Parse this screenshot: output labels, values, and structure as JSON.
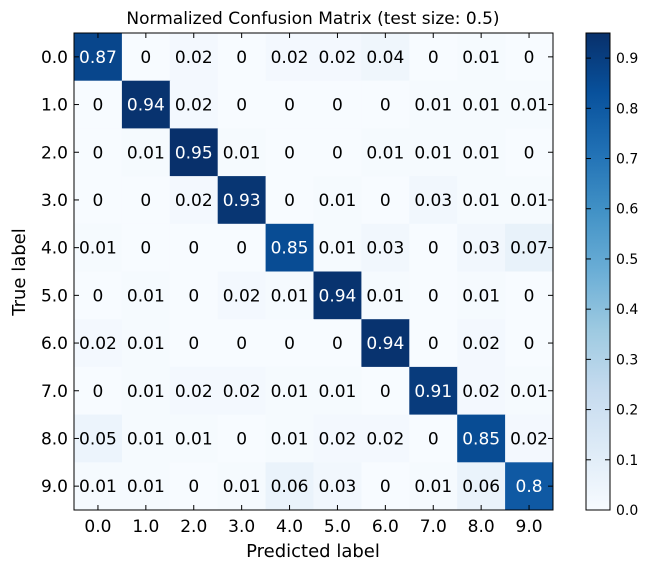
{
  "chart_data": {
    "type": "heatmap",
    "title": "Normalized Confusion Matrix (test size: 0.5)",
    "xlabel": "Predicted label",
    "ylabel": "True label",
    "x_categories": [
      "0.0",
      "1.0",
      "2.0",
      "3.0",
      "4.0",
      "5.0",
      "6.0",
      "7.0",
      "8.0",
      "9.0"
    ],
    "y_categories": [
      "0.0",
      "1.0",
      "2.0",
      "3.0",
      "4.0",
      "5.0",
      "6.0",
      "7.0",
      "8.0",
      "9.0"
    ],
    "values": [
      [
        0.87,
        0.0,
        0.02,
        0.0,
        0.02,
        0.02,
        0.04,
        0.0,
        0.01,
        0.0
      ],
      [
        0.0,
        0.94,
        0.02,
        0.0,
        0.0,
        0.0,
        0.0,
        0.01,
        0.01,
        0.01
      ],
      [
        0.0,
        0.01,
        0.95,
        0.01,
        0.0,
        0.0,
        0.01,
        0.01,
        0.01,
        0.0
      ],
      [
        0.0,
        0.0,
        0.02,
        0.93,
        0.0,
        0.01,
        0.0,
        0.03,
        0.01,
        0.01
      ],
      [
        0.01,
        0.0,
        0.0,
        0.0,
        0.85,
        0.01,
        0.03,
        0.0,
        0.03,
        0.07
      ],
      [
        0.0,
        0.01,
        0.0,
        0.02,
        0.01,
        0.94,
        0.01,
        0.0,
        0.01,
        0.0
      ],
      [
        0.02,
        0.01,
        0.0,
        0.0,
        0.0,
        0.0,
        0.94,
        0.0,
        0.02,
        0.0
      ],
      [
        0.0,
        0.01,
        0.02,
        0.02,
        0.01,
        0.01,
        0.0,
        0.91,
        0.02,
        0.01
      ],
      [
        0.05,
        0.01,
        0.01,
        0.0,
        0.01,
        0.02,
        0.02,
        0.0,
        0.85,
        0.02
      ],
      [
        0.01,
        0.01,
        0.0,
        0.01,
        0.06,
        0.03,
        0.0,
        0.01,
        0.06,
        0.8
      ]
    ],
    "colorbar": {
      "range": [
        0.0,
        0.95
      ],
      "ticks": [
        "0.0",
        "0.1",
        "0.2",
        "0.3",
        "0.4",
        "0.5",
        "0.6",
        "0.7",
        "0.8",
        "0.9"
      ],
      "colormap": "Blues"
    },
    "grid": false
  }
}
